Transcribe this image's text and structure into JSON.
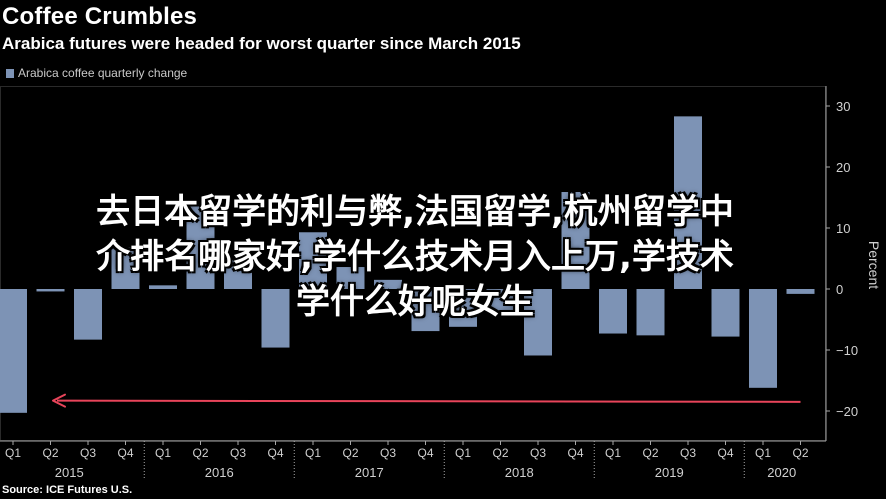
{
  "header": {
    "title": "Coffee Crumbles",
    "subtitle": "Arabica futures were headed for worst quarter since March 2015"
  },
  "legend": {
    "label": "Arabica coffee quarterly change"
  },
  "footer": {
    "source": "Source: ICE Futures U.S."
  },
  "overlay": {
    "lines": [
      "去日本留学的利与弊,法国留学,杭州留学中",
      "介排名哪家好,学什么技术月入上万,学技术",
      "学什么好呢女生"
    ]
  },
  "colors": {
    "bar": "#7d93b5",
    "arrow": "#e8445a",
    "axis": "#a8a8a8",
    "grid": "#3a3a3a"
  },
  "chart_data": {
    "type": "bar",
    "categories": [
      "Q1",
      "Q2",
      "Q3",
      "Q4",
      "Q1",
      "Q2",
      "Q3",
      "Q4",
      "Q1",
      "Q2",
      "Q3",
      "Q4",
      "Q1",
      "Q2",
      "Q3",
      "Q4",
      "Q1",
      "Q2",
      "Q3",
      "Q4",
      "Q1",
      "Q2"
    ],
    "years": [
      {
        "label": "2015",
        "start": 0,
        "end": 3
      },
      {
        "label": "2016",
        "start": 4,
        "end": 7
      },
      {
        "label": "2017",
        "start": 8,
        "end": 11
      },
      {
        "label": "2018",
        "start": 12,
        "end": 15
      },
      {
        "label": "2019",
        "start": 16,
        "end": 19
      },
      {
        "label": "2020",
        "start": 20,
        "end": 21
      }
    ],
    "series": [
      {
        "name": "Arabica coffee quarterly change",
        "values": [
          -20.3,
          -0.4,
          -8.3,
          6.8,
          0.6,
          13.8,
          4.8,
          -9.6,
          9.3,
          3.6,
          1.5,
          -6.9,
          -6.2,
          -3.5,
          -10.9,
          15.9,
          -7.3,
          -7.6,
          28.3,
          -7.8,
          -16.2,
          -0.8
        ]
      }
    ],
    "yticks": [
      30,
      20,
      10,
      0,
      -10,
      -20
    ],
    "ylim": [
      -25,
      32
    ],
    "ylabel": "Percent",
    "y_axis_position": "right",
    "grid": false,
    "legend_position": "top-left",
    "annotation": {
      "type": "arrow",
      "direction": "left",
      "from_index": 21,
      "to_index": 0,
      "value": -18.3
    }
  }
}
